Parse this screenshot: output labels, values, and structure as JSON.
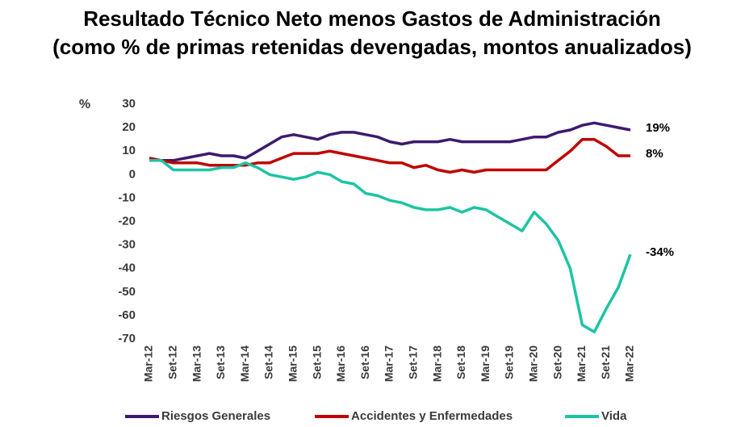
{
  "chart_data": {
    "type": "line",
    "title": "Resultado Técnico Neto menos Gastos de Administración",
    "subtitle": "(como % de primas retenidas devengadas, montos anualizados)",
    "y_label": "%",
    "categories": [
      "Mar-12",
      null,
      "Set-12",
      null,
      "Mar-13",
      null,
      "Set-13",
      null,
      "Mar-14",
      null,
      "Set-14",
      null,
      "Mar-15",
      null,
      "Set-15",
      null,
      "Mar-16",
      null,
      "Set-16",
      null,
      "Mar-17",
      null,
      "Set-17",
      null,
      "Mar-18",
      null,
      "Set-18",
      null,
      "Mar-19",
      null,
      "Set-19",
      null,
      "Mar-20",
      null,
      "Set-20",
      null,
      "Mar-21",
      null,
      "Set-21",
      null,
      "Mar-22"
    ],
    "series": [
      {
        "name": "Riesgos Generales",
        "color": "#3d1a6e",
        "values": [
          6,
          6,
          6,
          7,
          8,
          9,
          8,
          8,
          7,
          10,
          13,
          16,
          17,
          16,
          15,
          17,
          18,
          18,
          17,
          16,
          14,
          13,
          14,
          14,
          14,
          15,
          14,
          14,
          14,
          14,
          14,
          15,
          16,
          16,
          18,
          19,
          21,
          22,
          21,
          20,
          19
        ],
        "value_labels": [
          null,
          null,
          null,
          null,
          null,
          null,
          null,
          null,
          null,
          null,
          null,
          null,
          null,
          null,
          null,
          null,
          null,
          null,
          null,
          null,
          null,
          null,
          null,
          null,
          null,
          null,
          null,
          null,
          null,
          null,
          null,
          null,
          null,
          null,
          null,
          null,
          null,
          null,
          null,
          null,
          "19%"
        ]
      },
      {
        "name": "Accidentes y Enfermedades",
        "color": "#c00000",
        "values": [
          7,
          6,
          5,
          5,
          5,
          4,
          4,
          4,
          4,
          5,
          5,
          7,
          9,
          9,
          9,
          10,
          9,
          8,
          7,
          6,
          5,
          5,
          3,
          4,
          2,
          1,
          2,
          1,
          2,
          2,
          2,
          2,
          2,
          2,
          6,
          10,
          15,
          15,
          12,
          8,
          8
        ],
        "value_labels": [
          null,
          null,
          null,
          null,
          null,
          null,
          null,
          null,
          null,
          null,
          null,
          null,
          null,
          null,
          null,
          null,
          null,
          null,
          null,
          null,
          null,
          null,
          null,
          null,
          null,
          null,
          null,
          null,
          null,
          null,
          null,
          null,
          null,
          null,
          null,
          null,
          null,
          null,
          null,
          null,
          "8%"
        ]
      },
      {
        "name": "Vida",
        "color": "#1dc4a2",
        "values": [
          6,
          6,
          2,
          2,
          2,
          2,
          3,
          3,
          5,
          3,
          0,
          -1,
          -2,
          -1,
          1,
          0,
          -3,
          -4,
          -8,
          -9,
          -11,
          -12,
          -14,
          -15,
          -15,
          -14,
          -16,
          -14,
          -15,
          -18,
          -21,
          -24,
          -16,
          -21,
          -28,
          -40,
          -64,
          -67,
          -57,
          -48,
          -34
        ],
        "value_labels": [
          null,
          null,
          null,
          null,
          null,
          null,
          null,
          null,
          null,
          null,
          null,
          null,
          null,
          null,
          null,
          null,
          null,
          null,
          null,
          null,
          null,
          null,
          null,
          null,
          null,
          null,
          null,
          null,
          null,
          null,
          null,
          null,
          null,
          null,
          null,
          null,
          null,
          null,
          null,
          null,
          "-34%"
        ]
      }
    ],
    "ylim": [
      -70,
      30
    ],
    "yticks": [
      30,
      20,
      10,
      0,
      -10,
      -20,
      -30,
      -40,
      -50,
      -60,
      -70
    ],
    "grid": false
  }
}
